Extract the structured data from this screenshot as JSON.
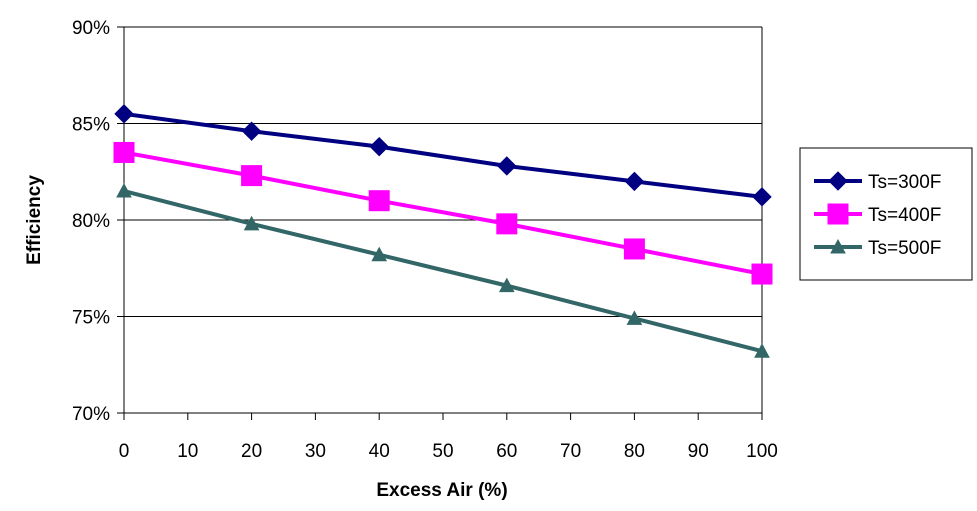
{
  "chart_data": {
    "type": "line",
    "title": "",
    "xlabel": "Excess Air (%)",
    "ylabel": "Efficiency",
    "x": [
      0,
      20,
      40,
      60,
      80,
      100
    ],
    "xlim": [
      0,
      100
    ],
    "xticks": [
      "0",
      "10",
      "20",
      "30",
      "40",
      "50",
      "60",
      "70",
      "80",
      "90",
      "100"
    ],
    "ylim": [
      70,
      90
    ],
    "yticks": [
      "70%",
      "75%",
      "80%",
      "85%",
      "90%"
    ],
    "grid": "horizontal",
    "legend_position": "right",
    "series": [
      {
        "name": "Ts=300F",
        "color": "#000080",
        "marker": "diamond",
        "values": [
          85.5,
          84.6,
          83.8,
          82.8,
          82.0,
          81.2
        ]
      },
      {
        "name": "Ts=400F",
        "color": "#ff00ff",
        "marker": "square",
        "values": [
          83.5,
          82.3,
          81.0,
          79.8,
          78.5,
          77.2
        ]
      },
      {
        "name": "Ts=500F",
        "color": "#336666",
        "marker": "triangle",
        "values": [
          81.5,
          79.8,
          78.2,
          76.6,
          74.9,
          73.2
        ]
      }
    ]
  }
}
